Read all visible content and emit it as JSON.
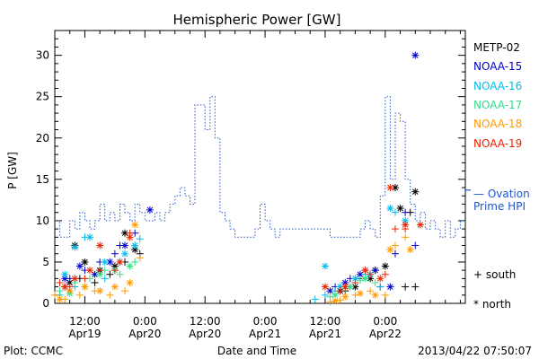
{
  "chart_data": {
    "type": "scatter",
    "title": "Hemispheric Power [GW]",
    "ylabel": "P [GW]",
    "xlabel": "Date and Time",
    "ylim": [
      0,
      33
    ],
    "xlim_hours": [
      0,
      82
    ],
    "yticks": [
      0,
      5,
      10,
      15,
      20,
      25,
      30
    ],
    "xticks": [
      {
        "hour": 6,
        "time": "12:00",
        "date": "Apr19"
      },
      {
        "hour": 18,
        "time": "0:00",
        "date": "Apr20"
      },
      {
        "hour": 30,
        "time": "12:00",
        "date": "Apr20"
      },
      {
        "hour": 42,
        "time": "0:00",
        "date": "Apr21"
      },
      {
        "hour": 54,
        "time": "12:00",
        "date": "Apr21"
      },
      {
        "hour": 66,
        "time": "0:00",
        "date": "Apr22"
      }
    ],
    "ovation": {
      "name": "— Ovation",
      "name2": "Prime HPI",
      "color": "#2255cc",
      "points": [
        [
          0,
          10
        ],
        [
          1,
          10
        ],
        [
          1,
          8
        ],
        [
          3,
          8
        ],
        [
          3,
          10
        ],
        [
          4,
          10
        ],
        [
          4,
          9
        ],
        [
          5,
          9
        ],
        [
          5,
          11
        ],
        [
          6,
          11
        ],
        [
          6,
          10
        ],
        [
          7,
          10
        ],
        [
          7,
          9
        ],
        [
          8,
          9
        ],
        [
          8,
          10
        ],
        [
          9,
          10
        ],
        [
          9,
          12
        ],
        [
          10,
          12
        ],
        [
          10,
          10
        ],
        [
          11,
          10
        ],
        [
          11,
          11
        ],
        [
          12,
          11
        ],
        [
          12,
          10
        ],
        [
          13,
          10
        ],
        [
          13,
          12
        ],
        [
          14,
          12
        ],
        [
          14,
          11
        ],
        [
          15,
          11
        ],
        [
          15,
          10
        ],
        [
          16,
          10
        ],
        [
          16,
          12
        ],
        [
          17,
          12
        ],
        [
          17,
          11
        ],
        [
          18,
          11
        ],
        [
          18,
          10
        ],
        [
          20,
          10
        ],
        [
          20,
          11
        ],
        [
          21,
          11
        ],
        [
          21,
          10
        ],
        [
          22,
          10
        ],
        [
          22,
          11
        ],
        [
          23,
          11
        ],
        [
          23,
          12
        ],
        [
          24,
          12
        ],
        [
          24,
          13
        ],
        [
          25,
          13
        ],
        [
          25,
          14
        ],
        [
          26,
          14
        ],
        [
          26,
          13
        ],
        [
          27,
          13
        ],
        [
          27,
          12
        ],
        [
          28,
          12
        ],
        [
          28,
          24
        ],
        [
          30,
          24
        ],
        [
          30,
          21
        ],
        [
          31,
          21
        ],
        [
          31,
          25
        ],
        [
          32,
          25
        ],
        [
          32,
          20
        ],
        [
          33,
          20
        ],
        [
          33,
          11
        ],
        [
          34,
          11
        ],
        [
          34,
          10
        ],
        [
          35,
          10
        ],
        [
          35,
          9
        ],
        [
          36,
          9
        ],
        [
          36,
          8
        ],
        [
          40,
          8
        ],
        [
          40,
          9
        ],
        [
          41,
          9
        ],
        [
          41,
          12
        ],
        [
          42,
          12
        ],
        [
          42,
          10
        ],
        [
          43,
          10
        ],
        [
          43,
          9
        ],
        [
          44,
          9
        ],
        [
          44,
          8
        ],
        [
          45,
          8
        ],
        [
          45,
          9
        ],
        [
          55,
          9
        ],
        [
          55,
          8
        ],
        [
          61,
          8
        ],
        [
          61,
          9
        ],
        [
          62,
          9
        ],
        [
          62,
          10
        ],
        [
          63,
          10
        ],
        [
          63,
          9
        ],
        [
          64,
          9
        ],
        [
          64,
          8
        ],
        [
          65,
          8
        ],
        [
          65,
          13
        ],
        [
          66,
          13
        ],
        [
          66,
          25
        ],
        [
          67,
          25
        ],
        [
          67,
          15
        ],
        [
          68,
          15
        ],
        [
          68,
          23
        ],
        [
          69,
          23
        ],
        [
          69,
          22
        ],
        [
          70,
          22
        ],
        [
          70,
          15
        ],
        [
          71,
          15
        ],
        [
          71,
          12
        ],
        [
          72,
          12
        ],
        [
          72,
          10
        ],
        [
          73,
          10
        ],
        [
          73,
          11
        ],
        [
          74,
          11
        ],
        [
          74,
          9
        ],
        [
          75,
          9
        ],
        [
          75,
          10
        ],
        [
          76,
          10
        ],
        [
          76,
          9
        ],
        [
          77,
          9
        ],
        [
          77,
          8
        ],
        [
          78,
          8
        ],
        [
          78,
          10
        ],
        [
          79,
          10
        ],
        [
          79,
          8
        ],
        [
          80,
          8
        ],
        [
          80,
          9
        ],
        [
          81,
          9
        ],
        [
          81,
          10
        ],
        [
          82,
          10
        ]
      ]
    },
    "series": [
      {
        "name": "METP-02",
        "color": "#000000",
        "south": [
          [
            2,
            2
          ],
          [
            5,
            3
          ],
          [
            8,
            2.5
          ],
          [
            11,
            3.5
          ],
          [
            14,
            5
          ],
          [
            17,
            6
          ],
          [
            58,
            1.5
          ],
          [
            61,
            3
          ],
          [
            64,
            4
          ],
          [
            70,
            2
          ],
          [
            71,
            11
          ],
          [
            72,
            2
          ]
        ],
        "north": [
          [
            3,
            2.5
          ],
          [
            4,
            7
          ],
          [
            6,
            5
          ],
          [
            9,
            4
          ],
          [
            12,
            4.5
          ],
          [
            14,
            8.5
          ],
          [
            16,
            6.5
          ],
          [
            57,
            1.5
          ],
          [
            60,
            2
          ],
          [
            63,
            3
          ],
          [
            66,
            4.5
          ],
          [
            68,
            14
          ],
          [
            69,
            11.5
          ],
          [
            72,
            13.5
          ]
        ]
      },
      {
        "name": "NOAA-15",
        "color": "#0000cc",
        "south": [
          [
            3,
            3
          ],
          [
            6,
            4
          ],
          [
            9,
            5
          ],
          [
            12,
            6
          ],
          [
            13,
            7
          ],
          [
            16,
            8.5
          ],
          [
            56,
            2
          ],
          [
            59,
            3
          ],
          [
            62,
            4
          ],
          [
            65,
            2
          ],
          [
            68,
            6
          ],
          [
            70,
            11
          ],
          [
            72,
            7
          ]
        ],
        "north": [
          [
            2,
            3
          ],
          [
            5,
            4.5
          ],
          [
            8,
            3.5
          ],
          [
            11,
            5
          ],
          [
            14,
            7
          ],
          [
            19,
            11.3
          ],
          [
            55,
            1.5
          ],
          [
            58,
            2.5
          ],
          [
            61,
            3.5
          ],
          [
            64,
            4
          ],
          [
            67,
            2
          ],
          [
            72,
            30
          ]
        ]
      },
      {
        "name": "NOAA-16",
        "color": "#00bbee",
        "south": [
          [
            1,
            1
          ],
          [
            4,
            2
          ],
          [
            6,
            8
          ],
          [
            10,
            3
          ],
          [
            13,
            5
          ],
          [
            17,
            7.8
          ],
          [
            52,
            0.5
          ],
          [
            54,
            1
          ],
          [
            56,
            1.5
          ],
          [
            59,
            2
          ],
          [
            62,
            3.5
          ],
          [
            65,
            2
          ],
          [
            68,
            11
          ]
        ],
        "north": [
          [
            2,
            3.5
          ],
          [
            4,
            6.8
          ],
          [
            7,
            8
          ],
          [
            10,
            5
          ],
          [
            14,
            6
          ],
          [
            16,
            7
          ],
          [
            54,
            4.5
          ],
          [
            57,
            2
          ],
          [
            60,
            3
          ],
          [
            63,
            3.5
          ],
          [
            67,
            11.5
          ],
          [
            70,
            10
          ]
        ]
      },
      {
        "name": "NOAA-17",
        "color": "#33dd88",
        "south": [
          [
            1,
            1.5
          ],
          [
            4,
            2.5
          ],
          [
            7,
            3
          ],
          [
            10,
            4
          ],
          [
            13,
            3.5
          ],
          [
            16,
            5
          ],
          [
            55,
            0.8
          ],
          [
            58,
            1.8
          ],
          [
            61,
            2.8
          ],
          [
            64,
            2.5
          ]
        ],
        "north": [
          [
            3,
            1.2
          ],
          [
            6,
            2
          ],
          [
            9,
            3.5
          ],
          [
            12,
            4
          ],
          [
            15,
            4.5
          ],
          [
            56,
            1
          ],
          [
            59,
            2
          ],
          [
            62,
            3
          ]
        ]
      },
      {
        "name": "NOAA-18",
        "color": "#ff9900",
        "south": [
          [
            0,
            1
          ],
          [
            2,
            0.5
          ],
          [
            5,
            1
          ],
          [
            8,
            1.5
          ],
          [
            11,
            1
          ],
          [
            14,
            1.5
          ],
          [
            17,
            5.5
          ],
          [
            55,
            0.2
          ],
          [
            57,
            0.4
          ],
          [
            60,
            1
          ],
          [
            63,
            1.5
          ],
          [
            66,
            1
          ],
          [
            68,
            7
          ],
          [
            70,
            8
          ]
        ],
        "north": [
          [
            1,
            0.5
          ],
          [
            3,
            1.5
          ],
          [
            6,
            2
          ],
          [
            9,
            1.5
          ],
          [
            12,
            2
          ],
          [
            15,
            2.5
          ],
          [
            16,
            9.5
          ],
          [
            56,
            0.3
          ],
          [
            58,
            0.8
          ],
          [
            61,
            1.2
          ],
          [
            64,
            1
          ],
          [
            67,
            6.5
          ],
          [
            71,
            6.5
          ]
        ]
      },
      {
        "name": "NOAA-19",
        "color": "#ee2200",
        "south": [
          [
            1,
            2.5
          ],
          [
            3,
            2
          ],
          [
            6,
            3
          ],
          [
            9,
            4
          ],
          [
            12,
            4
          ],
          [
            15,
            8.5
          ],
          [
            57,
            1.5
          ],
          [
            60,
            2.5
          ],
          [
            63,
            3.5
          ],
          [
            66,
            3.5
          ],
          [
            68,
            9
          ],
          [
            70,
            9
          ]
        ],
        "north": [
          [
            2,
            2
          ],
          [
            4,
            3
          ],
          [
            7,
            4
          ],
          [
            9,
            7
          ],
          [
            13,
            5
          ],
          [
            15,
            8
          ],
          [
            54,
            2
          ],
          [
            58,
            2
          ],
          [
            62,
            4
          ],
          [
            65,
            3
          ],
          [
            67,
            14
          ],
          [
            70,
            9.5
          ],
          [
            73,
            9.5
          ]
        ]
      }
    ],
    "marker_legend": {
      "south": "+ south",
      "north": "* north"
    },
    "footer_left": "Plot: CCMC",
    "footer_right": "2013/04/22 07:50:07"
  }
}
